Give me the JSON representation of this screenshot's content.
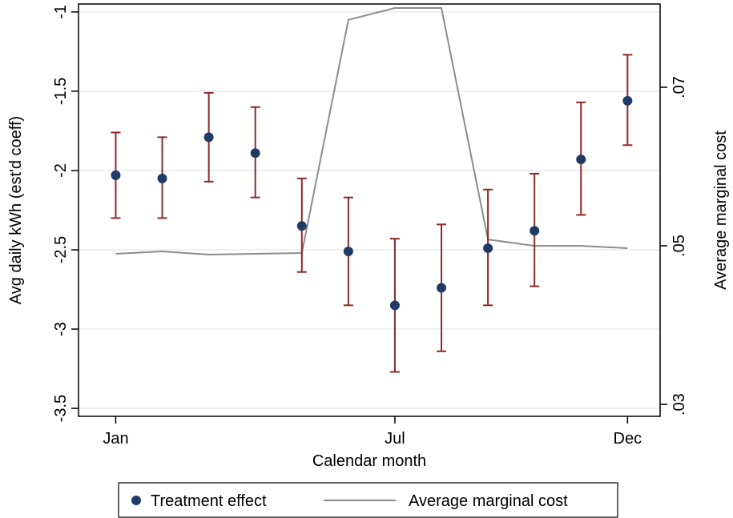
{
  "chart_data": {
    "type": "scatter",
    "title": "",
    "xlabel": "Calendar month",
    "ylabel": "Avg daily kWh (est'd coeff)",
    "y2label": "Average marginal cost",
    "x_ticks": [
      {
        "month": 1,
        "label": "Jan"
      },
      {
        "month": 7,
        "label": "Jul"
      },
      {
        "month": 12,
        "label": "Dec"
      }
    ],
    "xlim": [
      0.2,
      12.7
    ],
    "ylim": [
      -3.55,
      -0.95
    ],
    "y_ticks": [
      {
        "value": -1,
        "label": "-1"
      },
      {
        "value": -1.5,
        "label": "-1.5"
      },
      {
        "value": -2,
        "label": "-2"
      },
      {
        "value": -2.5,
        "label": "-2.5"
      },
      {
        "value": -3,
        "label": "-3"
      },
      {
        "value": -3.5,
        "label": "-3.5"
      }
    ],
    "y2lim": [
      0.0285,
      0.0805
    ],
    "y2_ticks": [
      {
        "value": 0.07,
        "label": ".07"
      },
      {
        "value": 0.05,
        "label": ".05"
      },
      {
        "value": 0.03,
        "label": ".03"
      }
    ],
    "grid": true,
    "legend_position": "bottom",
    "series": [
      {
        "name": "Treatment effect",
        "kind": "points_with_ci",
        "color": "#1f3b66",
        "ci_color": "#8b2a2a",
        "points": [
          {
            "x": 1,
            "y": -2.03,
            "lo": -2.3,
            "hi": -1.76
          },
          {
            "x": 2,
            "y": -2.05,
            "lo": -2.3,
            "hi": -1.79
          },
          {
            "x": 3,
            "y": -1.79,
            "lo": -2.07,
            "hi": -1.51
          },
          {
            "x": 4,
            "y": -1.89,
            "lo": -2.17,
            "hi": -1.6
          },
          {
            "x": 5,
            "y": -2.35,
            "lo": -2.64,
            "hi": -2.05
          },
          {
            "x": 6,
            "y": -2.51,
            "lo": -2.85,
            "hi": -2.17
          },
          {
            "x": 7,
            "y": -2.85,
            "lo": -3.27,
            "hi": -2.43
          },
          {
            "x": 8,
            "y": -2.74,
            "lo": -3.14,
            "hi": -2.34
          },
          {
            "x": 9,
            "y": -2.49,
            "lo": -2.85,
            "hi": -2.12
          },
          {
            "x": 10,
            "y": -2.38,
            "lo": -2.73,
            "hi": -2.02
          },
          {
            "x": 11,
            "y": -1.93,
            "lo": -2.28,
            "hi": -1.57
          },
          {
            "x": 12,
            "y": -1.56,
            "lo": -1.84,
            "hi": -1.27
          }
        ]
      },
      {
        "name": "Average marginal cost",
        "kind": "line",
        "axis": "right",
        "color": "#8c8c8c",
        "points": [
          {
            "x": 1,
            "y": 0.049
          },
          {
            "x": 2,
            "y": 0.0493
          },
          {
            "x": 3,
            "y": 0.0489
          },
          {
            "x": 4,
            "y": 0.049
          },
          {
            "x": 5,
            "y": 0.0491
          },
          {
            "x": 6,
            "y": 0.0785
          },
          {
            "x": 7,
            "y": 0.08
          },
          {
            "x": 8,
            "y": 0.08
          },
          {
            "x": 9,
            "y": 0.0508
          },
          {
            "x": 10,
            "y": 0.05
          },
          {
            "x": 11,
            "y": 0.05
          },
          {
            "x": 12,
            "y": 0.0497
          }
        ]
      }
    ],
    "legend": [
      {
        "label": "Treatment effect",
        "marker": "dot"
      },
      {
        "label": "Average marginal cost",
        "marker": "line"
      }
    ]
  }
}
